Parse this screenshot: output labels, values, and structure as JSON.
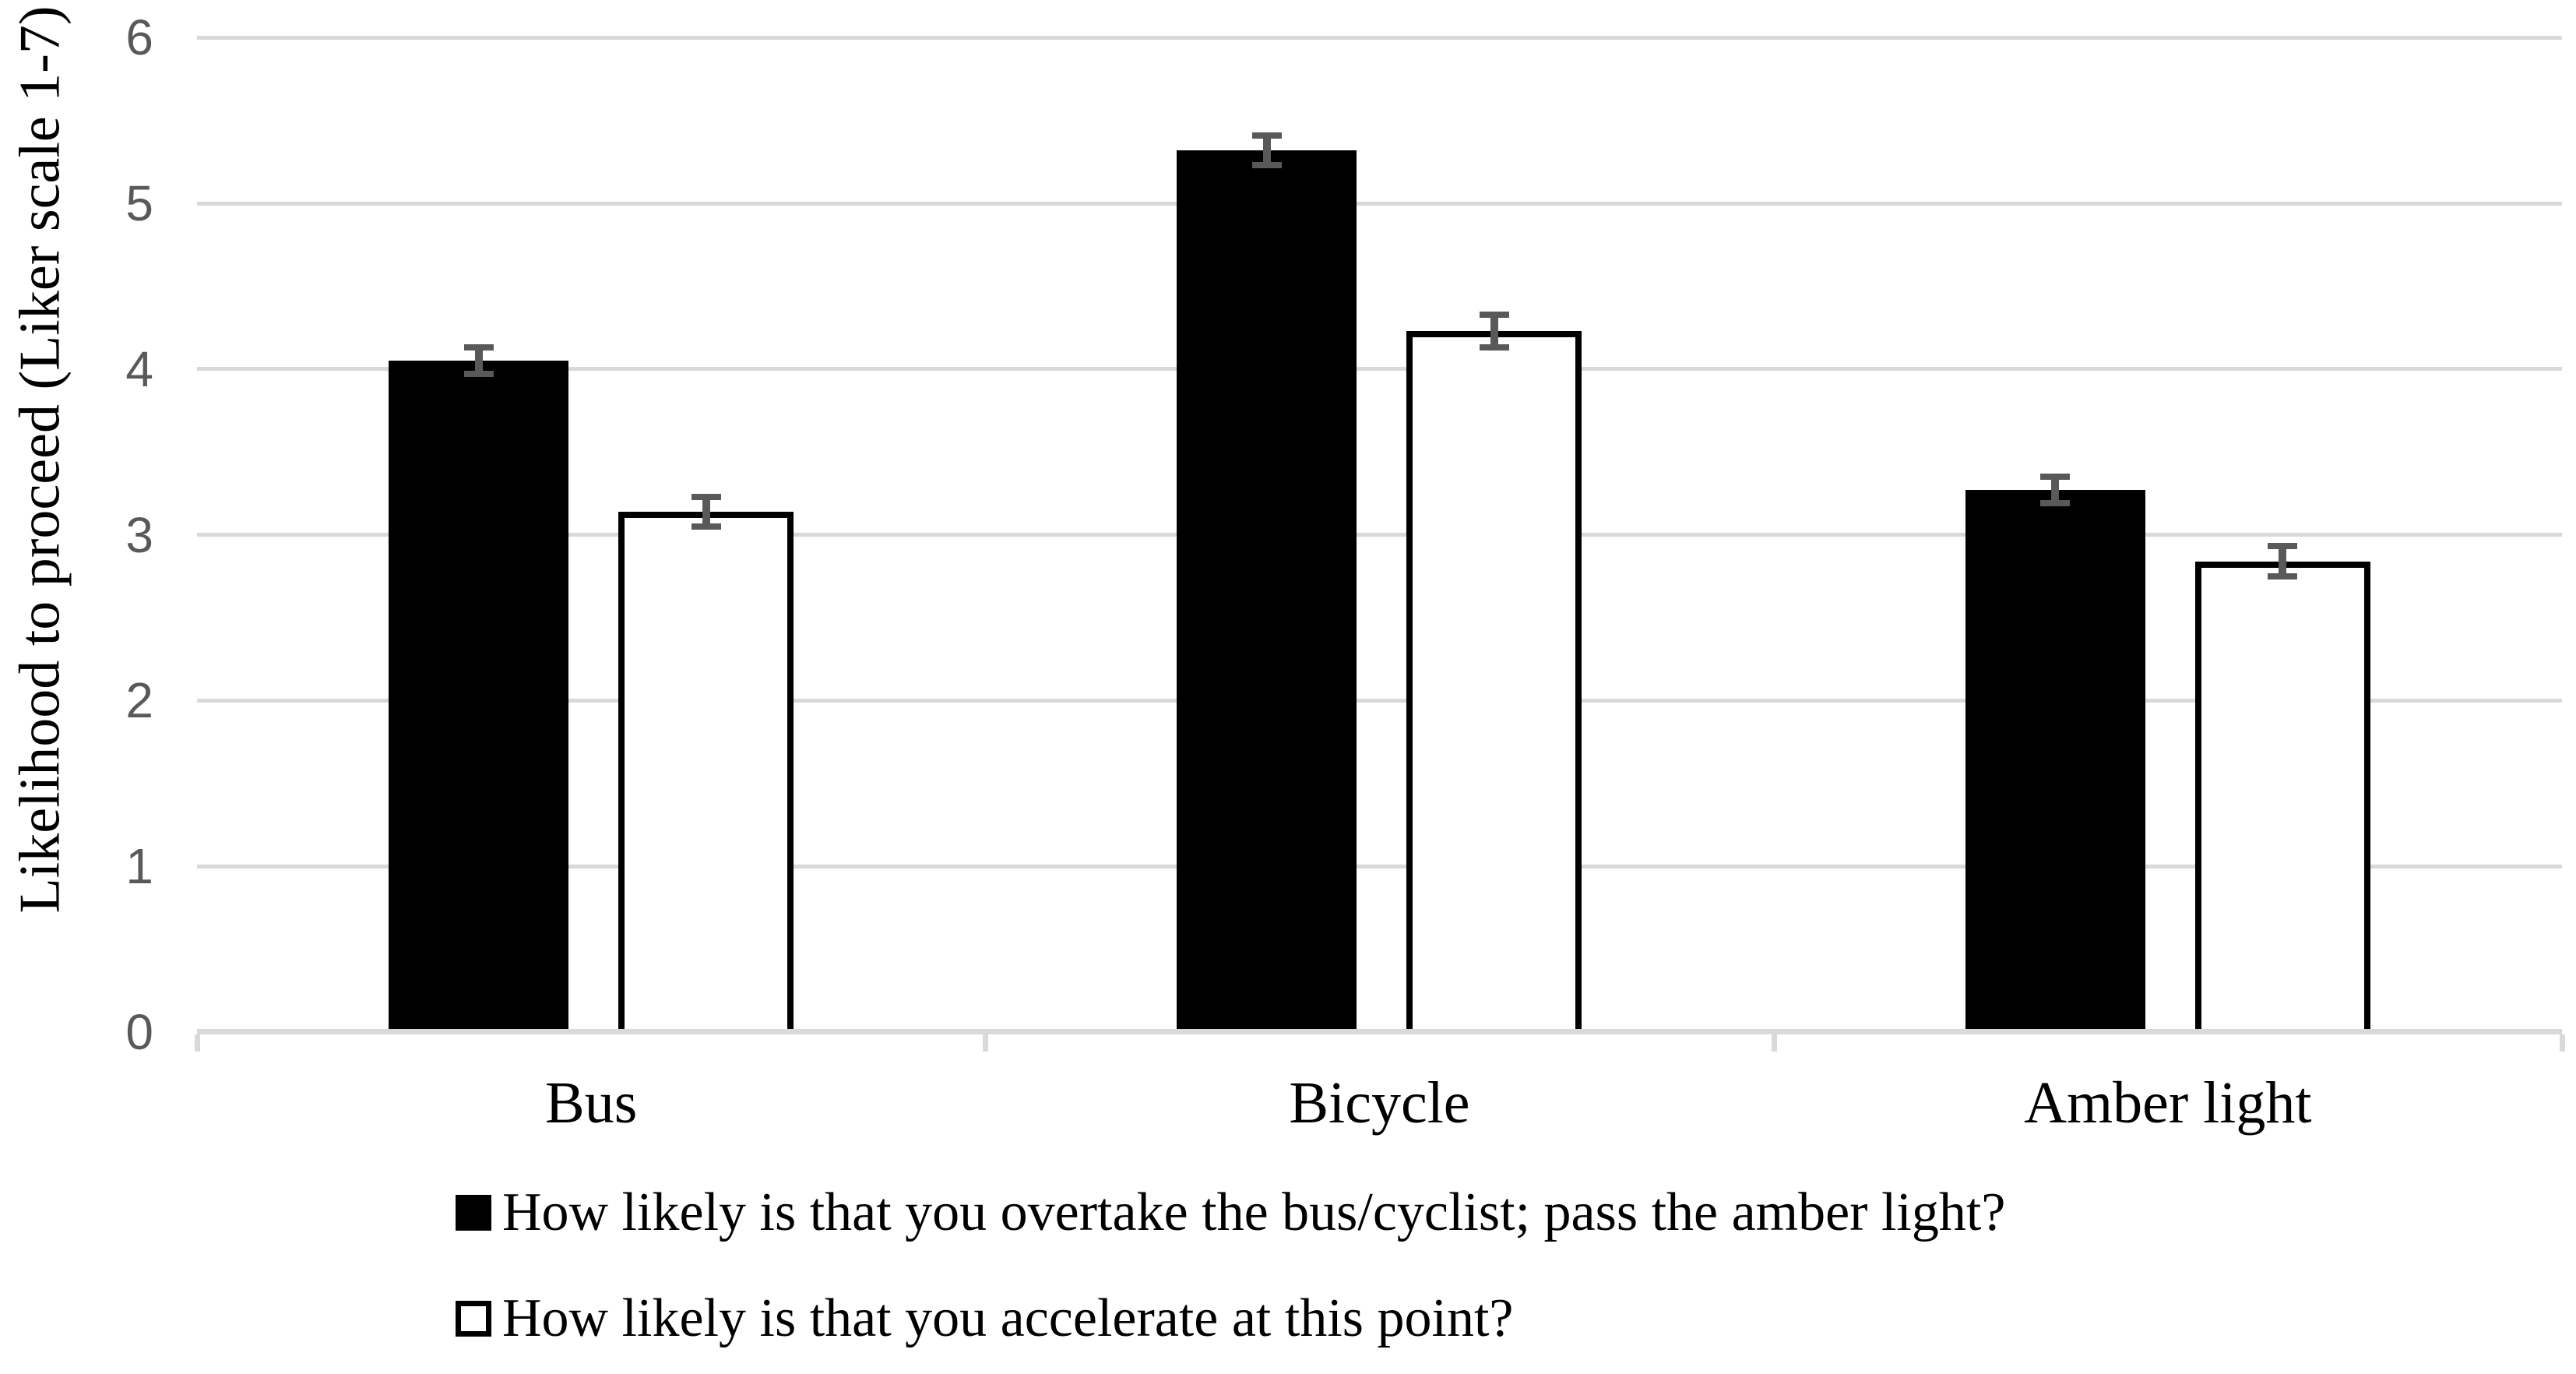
{
  "chart_data": {
    "type": "bar",
    "title": "",
    "xlabel": "",
    "ylabel": "Likelihood to proceed (Liker scale 1-7)",
    "ylim": [
      0,
      6
    ],
    "yticks": [
      0,
      1,
      2,
      3,
      4,
      5,
      6
    ],
    "grid": "horizontal",
    "legend_position": "bottom-left",
    "categories": [
      "Bus",
      "Bicycle",
      "Amber light"
    ],
    "series": [
      {
        "name": "How likely is that you overtake the bus/cyclist; pass the amber light?",
        "style": "filled",
        "fill": "#000000",
        "values": [
          4.05,
          5.32,
          3.27
        ],
        "errors": [
          0.08,
          0.09,
          0.08
        ]
      },
      {
        "name": "How likely is that you accelerate at this point?",
        "style": "open",
        "fill": "#ffffff",
        "values": [
          3.14,
          4.23,
          2.84
        ],
        "errors": [
          0.09,
          0.1,
          0.09
        ]
      }
    ],
    "colors": {
      "bar_fill_series1": "#000000",
      "bar_fill_series2": "#ffffff",
      "bar_border": "#000000",
      "gridline": "#d9d9d9",
      "axis_line": "#d9d9d9",
      "error_bar": "#595959",
      "tick_label": "#595959",
      "text": "#000000",
      "background": "#ffffff"
    }
  }
}
